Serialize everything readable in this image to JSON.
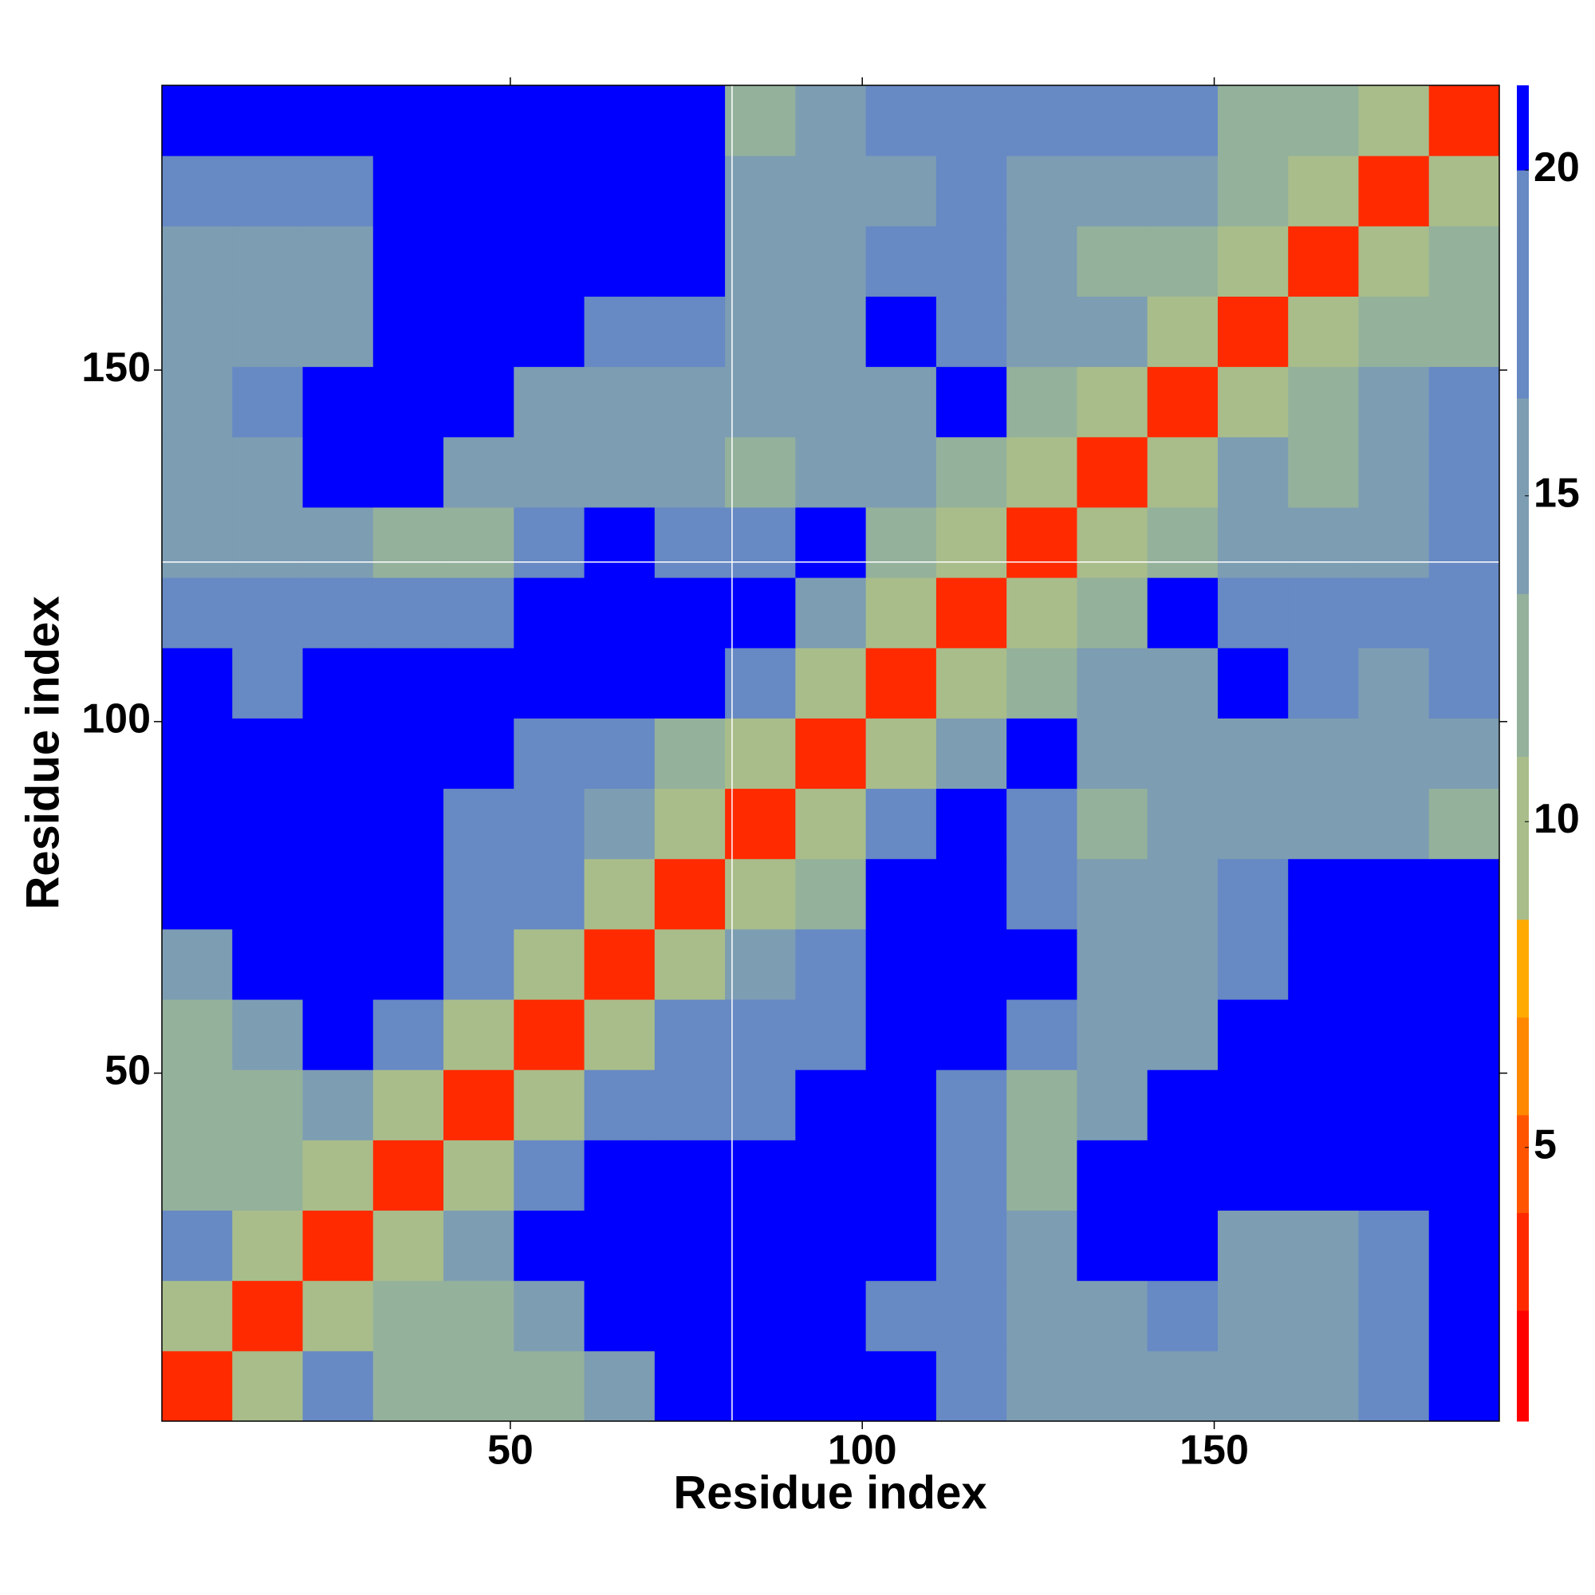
{
  "chart_data": {
    "type": "heatmap",
    "xlabel": "Residue index",
    "ylabel": "Residue index",
    "xbins": [
      0.5,
      10.5,
      20.5,
      30.5,
      40.5,
      50.5,
      60.5,
      70.5,
      80.5,
      90.5,
      100.5,
      110.5,
      120.5,
      130.5,
      140.5,
      150.5,
      160.5,
      170.5,
      180.5,
      190.5
    ],
    "ybins": [
      0.5,
      10.5,
      20.5,
      30.5,
      40.5,
      50.5,
      60.5,
      70.5,
      80.5,
      90.5,
      100.5,
      110.5,
      120.5,
      130.5,
      140.5,
      150.5,
      160.5,
      170.5,
      180.5,
      190.5
    ],
    "values": [
      [
        3,
        9,
        19,
        13,
        12,
        12,
        14,
        21,
        21,
        21,
        20,
        18,
        16,
        15,
        16,
        14,
        15,
        18,
        21
      ],
      [
        9,
        3,
        9,
        11,
        12,
        14,
        21,
        21,
        20,
        21,
        19,
        18,
        15,
        16,
        18,
        15,
        14,
        18,
        21
      ],
      [
        19,
        9,
        3,
        9,
        14,
        21,
        21,
        21,
        21,
        21,
        21,
        17,
        14,
        21,
        21,
        16,
        16,
        19,
        20
      ],
      [
        13,
        11,
        9,
        3,
        9,
        19,
        21,
        21,
        21,
        21,
        21,
        17,
        13,
        21,
        21,
        21,
        21,
        21,
        21
      ],
      [
        12,
        12,
        14,
        9,
        3,
        9,
        19,
        19,
        19,
        21,
        21,
        17,
        13,
        14,
        21,
        21,
        21,
        21,
        21
      ],
      [
        12,
        14,
        21,
        19,
        9,
        3,
        9,
        18,
        19,
        19,
        21,
        21,
        17,
        14,
        15,
        21,
        21,
        21,
        21
      ],
      [
        14,
        21,
        21,
        21,
        19,
        9,
        3,
        9,
        16,
        19,
        21,
        21,
        21,
        15,
        14,
        18,
        21,
        21,
        21
      ],
      [
        21,
        21,
        21,
        21,
        19,
        18,
        9,
        3,
        9,
        12,
        21,
        21,
        19,
        15,
        16,
        17,
        21,
        21,
        21
      ],
      [
        21,
        20,
        21,
        21,
        19,
        19,
        16,
        9,
        3,
        9,
        17,
        21,
        17,
        13,
        14,
        15,
        16,
        15,
        13
      ],
      [
        21,
        21,
        21,
        21,
        21,
        19,
        19,
        12,
        9,
        3,
        9,
        15,
        21,
        14,
        14,
        16,
        15,
        15,
        16
      ],
      [
        20,
        19,
        21,
        21,
        21,
        21,
        21,
        21,
        17,
        9,
        3,
        9,
        12,
        16,
        16,
        21,
        17,
        16,
        18
      ],
      [
        18,
        18,
        17,
        17,
        17,
        21,
        21,
        21,
        21,
        15,
        9,
        3,
        9,
        11,
        21,
        18,
        19,
        18,
        19
      ],
      [
        16,
        15,
        14,
        13,
        13,
        17,
        21,
        19,
        17,
        21,
        12,
        9,
        3,
        9,
        13,
        15,
        16,
        15,
        17
      ],
      [
        15,
        16,
        21,
        21,
        14,
        14,
        15,
        15,
        13,
        14,
        16,
        11,
        9,
        3,
        9,
        14,
        13,
        16,
        19
      ],
      [
        16,
        18,
        21,
        21,
        21,
        15,
        14,
        16,
        14,
        14,
        16,
        21,
        13,
        9,
        3,
        9,
        11,
        14,
        17
      ],
      [
        14,
        15,
        16,
        21,
        21,
        21,
        18,
        17,
        15,
        16,
        21,
        18,
        15,
        14,
        9,
        3,
        9,
        12,
        13
      ],
      [
        15,
        14,
        16,
        21,
        21,
        21,
        21,
        21,
        16,
        15,
        17,
        19,
        16,
        13,
        11,
        9,
        3,
        9,
        13
      ],
      [
        18,
        18,
        19,
        21,
        21,
        21,
        21,
        21,
        15,
        15,
        16,
        18,
        15,
        16,
        14,
        12,
        9,
        3,
        9
      ],
      [
        21,
        21,
        20,
        21,
        21,
        21,
        21,
        21,
        13,
        16,
        18,
        19,
        17,
        19,
        17,
        13,
        13,
        9,
        3
      ]
    ],
    "xlim": [
      0.5,
      190.5
    ],
    "ylim": [
      0.5,
      190.5
    ],
    "xticks": [
      50,
      100,
      150
    ],
    "yticks": [
      50,
      100,
      150
    ],
    "clim": [
      0.8,
      21.3
    ],
    "cticks": [
      5,
      10,
      15,
      20
    ],
    "color_levels": [
      0.8,
      2.5,
      4,
      5.5,
      7,
      8.5,
      11,
      13.5,
      16.5,
      20,
      21.3
    ],
    "colors": [
      "#ff0000",
      "#ff2a00",
      "#ff5500",
      "#ff8800",
      "#ffaa00",
      "#a9bd8b",
      "#94b19b",
      "#7d9db3",
      "#6789c4",
      "#0000ff"
    ],
    "vline": 81.5,
    "hline": 122.7,
    "line_color": "#ffffff"
  }
}
